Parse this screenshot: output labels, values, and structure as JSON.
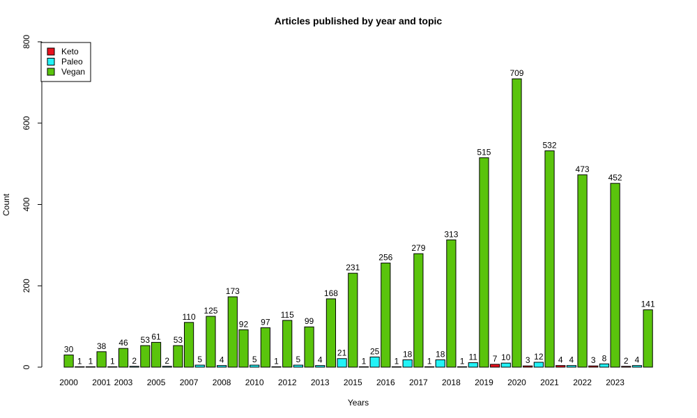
{
  "chart_data": {
    "type": "bar",
    "title": "Articles published by year and topic",
    "xlabel": "Years",
    "ylabel": "Count",
    "ylim": [
      0,
      800
    ],
    "yticks": [
      0,
      200,
      400,
      600,
      800
    ],
    "legend_position": "top-left",
    "grid": false,
    "series": [
      {
        "name": "Keto",
        "color": "#e8121e"
      },
      {
        "name": "Paleo",
        "color": "#22f3f7"
      },
      {
        "name": "Vegan",
        "color": "#5ac40c"
      }
    ],
    "bars": [
      {
        "series": "Vegan",
        "value": 30
      },
      {
        "series": "Paleo",
        "value": 1
      },
      {
        "series": "Paleo",
        "value": 1
      },
      {
        "series": "Vegan",
        "value": 38
      },
      {
        "series": "Paleo",
        "value": 1
      },
      {
        "series": "Vegan",
        "value": 46
      },
      {
        "series": "Paleo",
        "value": 2
      },
      {
        "series": "Vegan",
        "value": 53
      },
      {
        "series": "Vegan",
        "value": 61
      },
      {
        "series": "Paleo",
        "value": 2
      },
      {
        "series": "Vegan",
        "value": 53
      },
      {
        "series": "Vegan",
        "value": 110
      },
      {
        "series": "Paleo",
        "value": 5
      },
      {
        "series": "Vegan",
        "value": 125
      },
      {
        "series": "Paleo",
        "value": 4
      },
      {
        "series": "Vegan",
        "value": 173
      },
      {
        "series": "Vegan",
        "value": 92
      },
      {
        "series": "Paleo",
        "value": 5
      },
      {
        "series": "Vegan",
        "value": 97
      },
      {
        "series": "Paleo",
        "value": 1
      },
      {
        "series": "Vegan",
        "value": 115
      },
      {
        "series": "Paleo",
        "value": 5
      },
      {
        "series": "Vegan",
        "value": 99
      },
      {
        "series": "Paleo",
        "value": 4
      },
      {
        "series": "Vegan",
        "value": 168
      },
      {
        "series": "Paleo",
        "value": 21
      },
      {
        "series": "Vegan",
        "value": 231
      },
      {
        "series": "Paleo",
        "value": 1
      },
      {
        "series": "Paleo",
        "value": 25
      },
      {
        "series": "Vegan",
        "value": 256
      },
      {
        "series": "Paleo",
        "value": 1
      },
      {
        "series": "Paleo",
        "value": 18
      },
      {
        "series": "Vegan",
        "value": 279
      },
      {
        "series": "Paleo",
        "value": 1
      },
      {
        "series": "Paleo",
        "value": 18
      },
      {
        "series": "Vegan",
        "value": 313
      },
      {
        "series": "Paleo",
        "value": 1
      },
      {
        "series": "Paleo",
        "value": 11
      },
      {
        "series": "Vegan",
        "value": 515
      },
      {
        "series": "Keto",
        "value": 7
      },
      {
        "series": "Paleo",
        "value": 10
      },
      {
        "series": "Vegan",
        "value": 709
      },
      {
        "series": "Keto",
        "value": 3
      },
      {
        "series": "Paleo",
        "value": 12
      },
      {
        "series": "Vegan",
        "value": 532
      },
      {
        "series": "Keto",
        "value": 4
      },
      {
        "series": "Paleo",
        "value": 4
      },
      {
        "series": "Vegan",
        "value": 473
      },
      {
        "series": "Keto",
        "value": 3
      },
      {
        "series": "Paleo",
        "value": 8
      },
      {
        "series": "Vegan",
        "value": 452
      },
      {
        "series": "Keto",
        "value": 2
      },
      {
        "series": "Paleo",
        "value": 4
      },
      {
        "series": "Vegan",
        "value": 141
      }
    ],
    "x_tick_labels": [
      {
        "label": "2000",
        "at_bar": 0
      },
      {
        "label": "2001",
        "at_bar": 3
      },
      {
        "label": "2003",
        "at_bar": 5
      },
      {
        "label": "2005",
        "at_bar": 8
      },
      {
        "label": "2007",
        "at_bar": 11
      },
      {
        "label": "2008",
        "at_bar": 14
      },
      {
        "label": "2010",
        "at_bar": 17
      },
      {
        "label": "2012",
        "at_bar": 20
      },
      {
        "label": "2013",
        "at_bar": 23
      },
      {
        "label": "2015",
        "at_bar": 26
      },
      {
        "label": "2016",
        "at_bar": 29
      },
      {
        "label": "2017",
        "at_bar": 32
      },
      {
        "label": "2018",
        "at_bar": 35
      },
      {
        "label": "2019",
        "at_bar": 38
      },
      {
        "label": "2020",
        "at_bar": 41
      },
      {
        "label": "2021",
        "at_bar": 44
      },
      {
        "label": "2022",
        "at_bar": 47
      },
      {
        "label": "2023",
        "at_bar": 50
      }
    ]
  }
}
